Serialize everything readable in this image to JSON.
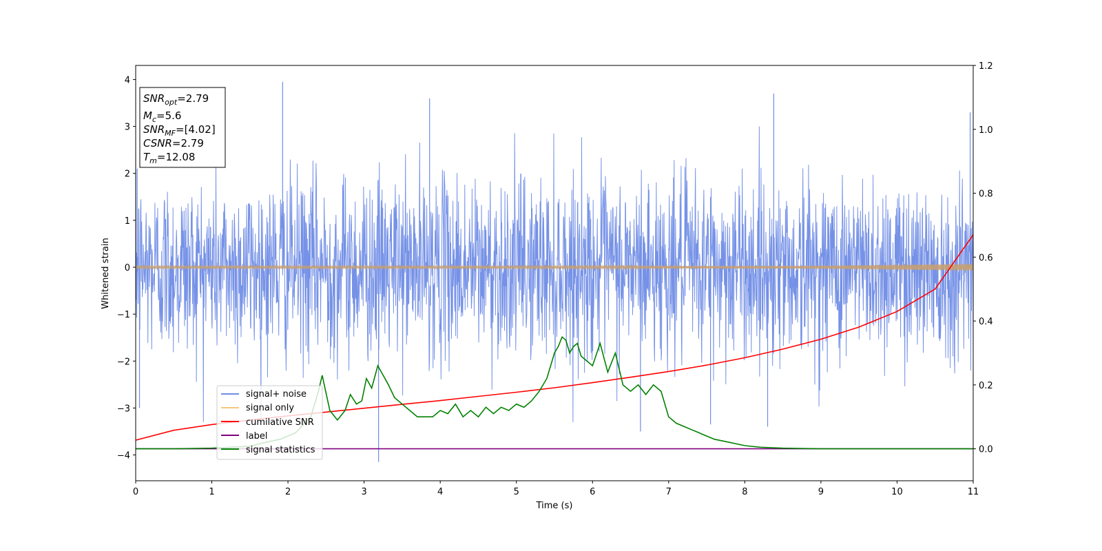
{
  "chart_data": {
    "type": "line",
    "xlabel": "Time (s)",
    "ylabel": "Whitened strain",
    "xlim": [
      0,
      11
    ],
    "ylim": [
      -4.55,
      4.3
    ],
    "ylim_right": [
      -0.1,
      1.2
    ],
    "xticks": [
      "0",
      "1",
      "2",
      "3",
      "4",
      "5",
      "6",
      "7",
      "8",
      "9",
      "10",
      "11"
    ],
    "yticks_left": [
      "−4",
      "−3",
      "−2",
      "−1",
      "0",
      "1",
      "2",
      "3",
      "4"
    ],
    "yticks_right": [
      "0.0",
      "0.2",
      "0.4",
      "0.6",
      "0.8",
      "1.0",
      "1.2"
    ],
    "legend_position": "lower-left",
    "info_box": {
      "snr_opt": "=2.79",
      "mc": "=5.6",
      "snr_mf": "=[4.02]",
      "csnr": "=2.79",
      "tm": "=12.08"
    },
    "series": [
      {
        "name": "signal+ noise",
        "axis": "left",
        "color": "#6f8ce6",
        "description_values": "dense random noise, sigma approx 1, range approx -4.2 to 3.95",
        "spikes": [
          [
            0.02,
            2.1
          ],
          [
            1.93,
            3.95
          ],
          [
            3.86,
            3.6
          ],
          [
            8.38,
            3.7
          ],
          [
            10.96,
            3.3
          ],
          [
            3.19,
            -4.15
          ],
          [
            8.3,
            -3.4
          ],
          [
            6.63,
            -3.5
          ],
          [
            7.55,
            -3.35
          ],
          [
            0.05,
            -3.0
          ]
        ]
      },
      {
        "name": "signal only",
        "axis": "left",
        "color": "#f5c77a",
        "x": [
          0,
          5,
          9,
          10,
          10.5,
          11
        ],
        "amplitude": [
          0.02,
          0.02,
          0.03,
          0.05,
          0.06,
          0.07
        ]
      },
      {
        "name": "cumilative SNR",
        "axis": "right",
        "color": "#ff0000",
        "x": [
          0,
          0.5,
          1,
          1.5,
          2,
          2.5,
          3,
          3.5,
          4,
          4.5,
          5,
          5.5,
          6,
          6.5,
          7,
          7.5,
          8,
          8.5,
          9,
          9.5,
          10,
          10.5,
          11
        ],
        "values": [
          0.027,
          0.058,
          0.076,
          0.09,
          0.103,
          0.115,
          0.127,
          0.139,
          0.151,
          0.164,
          0.177,
          0.191,
          0.207,
          0.224,
          0.242,
          0.262,
          0.285,
          0.312,
          0.343,
          0.381,
          0.43,
          0.5,
          0.67
        ]
      },
      {
        "name": "label",
        "axis": "right",
        "color": "#800080",
        "x": [
          0,
          11
        ],
        "values": [
          0.0,
          0.0
        ]
      },
      {
        "name": "signal statistics",
        "axis": "right",
        "color": "#008000",
        "x": [
          0,
          0.5,
          1,
          1.5,
          1.7,
          1.9,
          2.1,
          2.3,
          2.4,
          2.45,
          2.55,
          2.65,
          2.75,
          2.82,
          2.9,
          2.97,
          3.03,
          3.1,
          3.18,
          3.25,
          3.32,
          3.4,
          3.5,
          3.6,
          3.7,
          3.8,
          3.9,
          4.0,
          4.1,
          4.2,
          4.3,
          4.4,
          4.5,
          4.6,
          4.7,
          4.8,
          4.9,
          5.0,
          5.1,
          5.2,
          5.3,
          5.4,
          5.45,
          5.5,
          5.55,
          5.6,
          5.65,
          5.7,
          5.75,
          5.8,
          5.85,
          5.9,
          6.0,
          6.1,
          6.2,
          6.3,
          6.4,
          6.5,
          6.6,
          6.7,
          6.8,
          6.9,
          7.0,
          7.1,
          7.2,
          7.3,
          7.4,
          7.5,
          7.6,
          7.8,
          8.0,
          8.2,
          8.5,
          9.0,
          10.0,
          11.0
        ],
        "values": [
          0.0,
          0.0,
          0.002,
          0.008,
          0.02,
          0.03,
          0.05,
          0.1,
          0.18,
          0.23,
          0.12,
          0.09,
          0.12,
          0.17,
          0.14,
          0.15,
          0.22,
          0.19,
          0.26,
          0.23,
          0.2,
          0.16,
          0.14,
          0.12,
          0.1,
          0.1,
          0.1,
          0.12,
          0.11,
          0.14,
          0.1,
          0.12,
          0.1,
          0.13,
          0.11,
          0.13,
          0.12,
          0.14,
          0.13,
          0.15,
          0.18,
          0.22,
          0.26,
          0.3,
          0.32,
          0.35,
          0.34,
          0.3,
          0.32,
          0.33,
          0.29,
          0.28,
          0.26,
          0.33,
          0.24,
          0.3,
          0.2,
          0.18,
          0.2,
          0.17,
          0.2,
          0.18,
          0.1,
          0.08,
          0.07,
          0.06,
          0.05,
          0.04,
          0.03,
          0.02,
          0.01,
          0.005,
          0.002,
          0.0,
          0.0,
          0.0
        ]
      }
    ]
  }
}
